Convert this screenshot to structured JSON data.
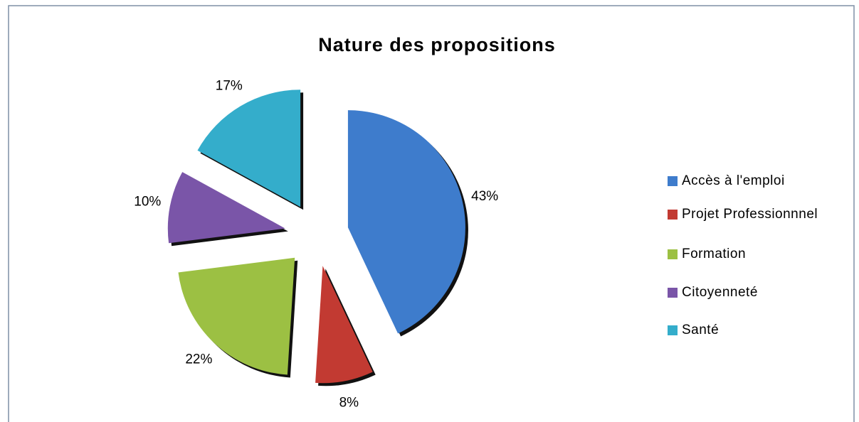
{
  "chart_data": {
    "type": "pie",
    "title": "Nature des propositions",
    "categories": [
      "Accès à l'emploi",
      "Projet Professionnnel",
      "Formation",
      "Citoyenneté",
      "Santé"
    ],
    "values": [
      43,
      8,
      22,
      10,
      17
    ],
    "value_labels": [
      "43%",
      "8%",
      "22%",
      "10%",
      "17%"
    ],
    "colors": [
      "#3e7ccc",
      "#c23a32",
      "#9cc043",
      "#7a55a8",
      "#34adcb"
    ],
    "exploded": true,
    "legend": "right"
  }
}
